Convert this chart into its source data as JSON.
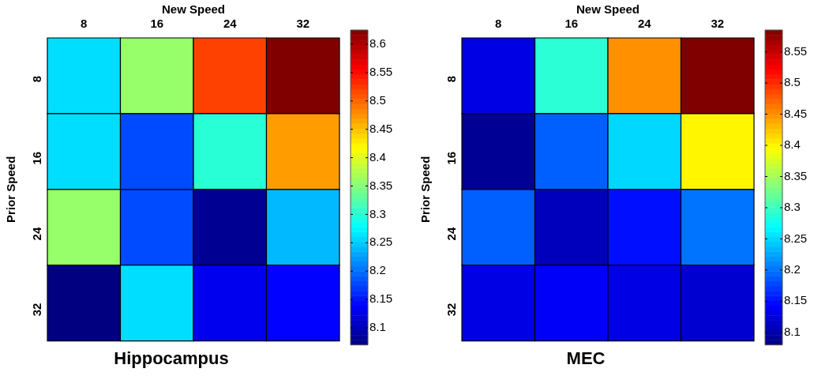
{
  "chart_data": [
    {
      "type": "heatmap",
      "title": "Hippocampus",
      "xlabel": "New Speed",
      "ylabel": "Prior Speed",
      "categories": [
        "8",
        "16",
        "24",
        "32"
      ],
      "y_categories": [
        "8",
        "16",
        "24",
        "32"
      ],
      "cells": [
        [
          8.26,
          8.36,
          8.52,
          8.625
        ],
        [
          8.26,
          8.18,
          8.3,
          8.47
        ],
        [
          8.36,
          8.18,
          8.08,
          8.24
        ],
        [
          8.07,
          8.26,
          8.13,
          8.14
        ]
      ],
      "clim": [
        8.07,
        8.625
      ],
      "cticks": [
        8.1,
        8.15,
        8.2,
        8.25,
        8.3,
        8.35,
        8.4,
        8.45,
        8.5,
        8.55,
        8.6
      ]
    },
    {
      "type": "heatmap",
      "title": "MEC",
      "xlabel": "New Speed",
      "ylabel": "Prior Speed",
      "categories": [
        "8",
        "16",
        "24",
        "32"
      ],
      "y_categories": [
        "8",
        "16",
        "24",
        "32"
      ],
      "cells": [
        [
          8.13,
          8.29,
          8.45,
          8.585
        ],
        [
          8.09,
          8.19,
          8.25,
          8.4
        ],
        [
          8.19,
          8.11,
          8.15,
          8.2
        ],
        [
          8.13,
          8.14,
          8.13,
          8.12
        ]
      ],
      "clim": [
        8.08,
        8.585
      ],
      "cticks": [
        8.1,
        8.15,
        8.2,
        8.25,
        8.3,
        8.35,
        8.4,
        8.45,
        8.5,
        8.55
      ]
    }
  ]
}
